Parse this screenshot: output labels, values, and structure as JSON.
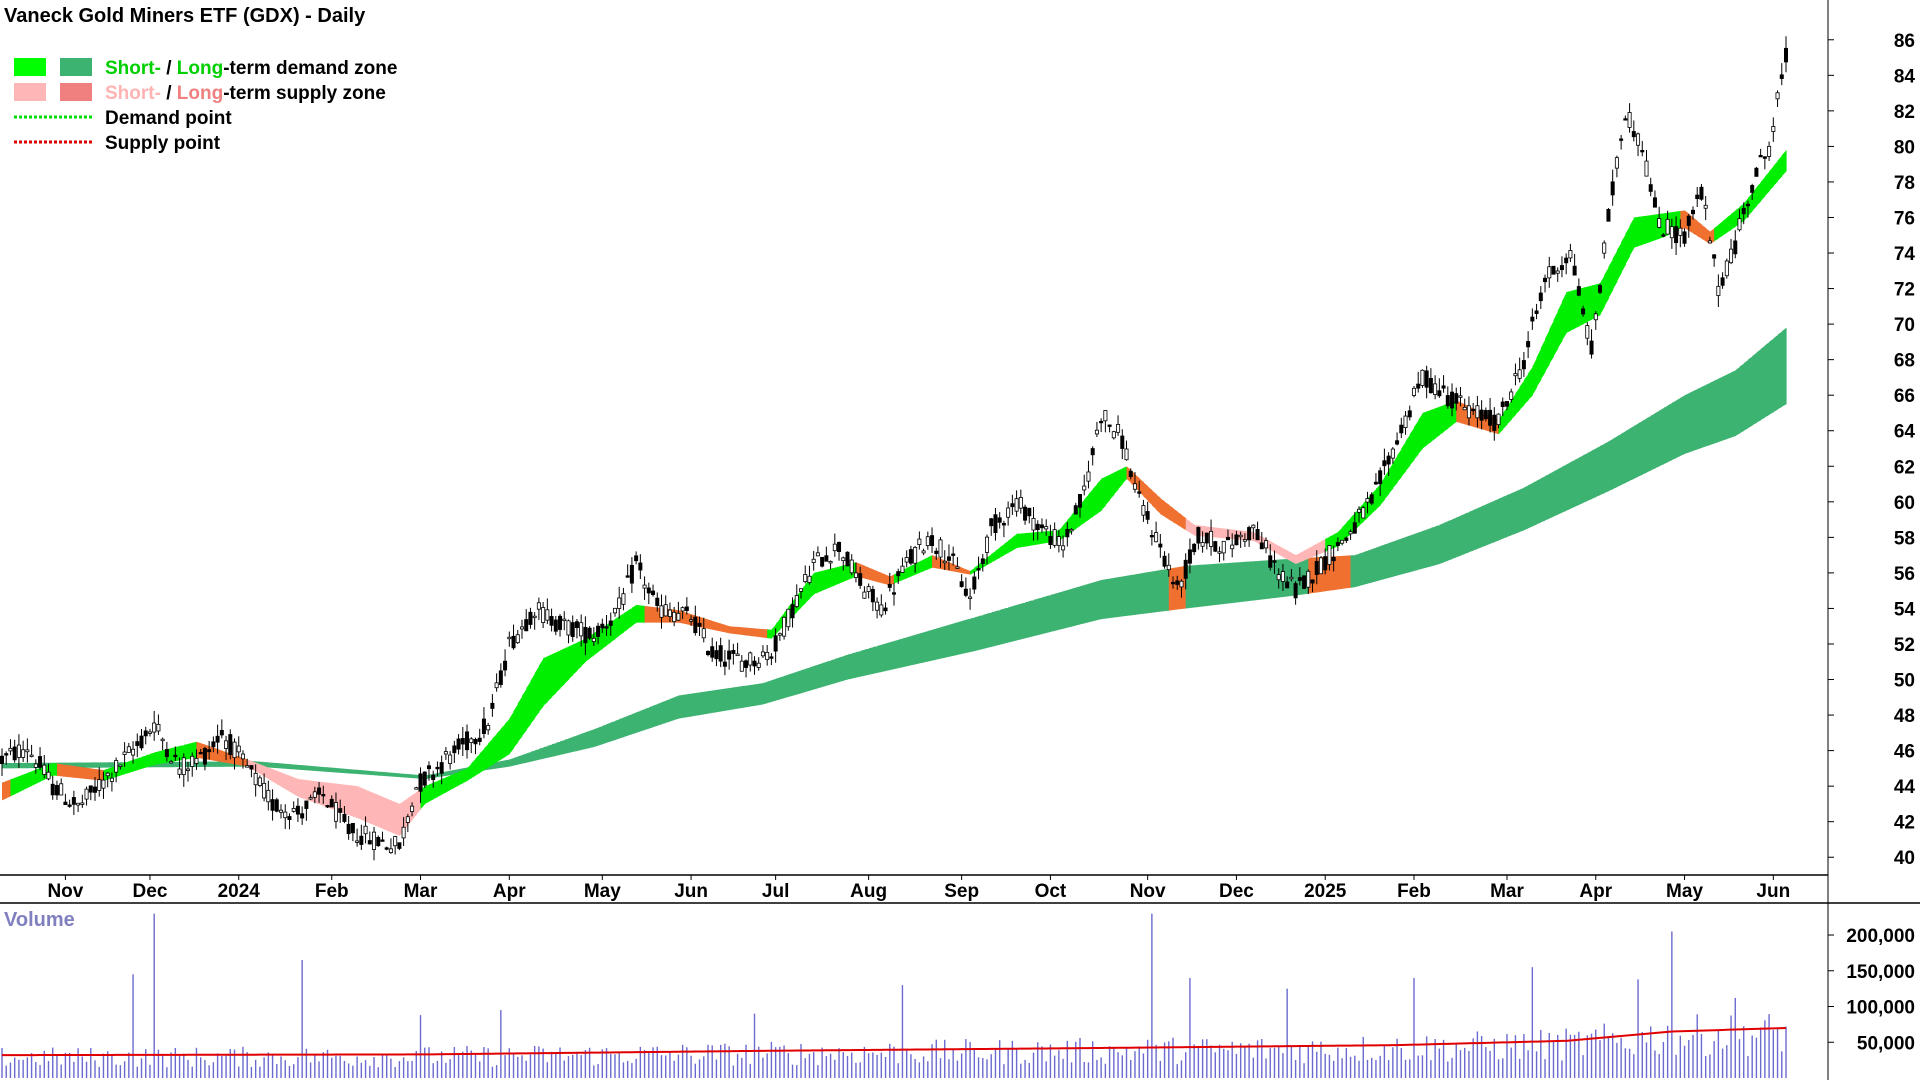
{
  "chart_data": [
    {
      "type": "candlestick",
      "title": "Vaneck Gold Miners ETF (GDX) - Daily",
      "legend": {
        "placement": "top-left",
        "entries": [
          {
            "parts": [
              {
                "text": "Short-",
                "color": "#00d000"
              },
              {
                "text": " / ",
                "color": "#000000"
              },
              {
                "text": "Long",
                "color": "#00d000"
              },
              {
                "text": "-term demand zone",
                "color": "#000000"
              }
            ],
            "swatches": [
              "#00ff00",
              "#3cb371"
            ],
            "style": "box"
          },
          {
            "parts": [
              {
                "text": "Short-",
                "color": "#ffb3b3"
              },
              {
                "text": " / ",
                "color": "#000000"
              },
              {
                "text": "Long",
                "color": "#f08080"
              },
              {
                "text": "-term supply zone",
                "color": "#000000"
              }
            ],
            "swatches": [
              "#ffb6b6",
              "#f08080"
            ],
            "style": "box"
          },
          {
            "parts": [
              {
                "text": "Demand point",
                "color": "#000000"
              }
            ],
            "swatches": [
              "#00dd00"
            ],
            "style": "dots"
          },
          {
            "parts": [
              {
                "text": "Supply point",
                "color": "#000000"
              }
            ],
            "swatches": [
              "#dd0000"
            ],
            "style": "dots"
          }
        ]
      },
      "y_axis": {
        "side": "right",
        "ylim": [
          39,
          87
        ],
        "ticks": [
          40,
          42,
          44,
          46,
          48,
          50,
          52,
          54,
          56,
          58,
          60,
          62,
          64,
          66,
          68,
          70,
          72,
          74,
          76,
          78,
          80,
          82,
          84,
          86
        ]
      },
      "x_axis": {
        "tick_labels": [
          "Nov",
          "Dec",
          "2024",
          "Feb",
          "Mar",
          "Apr",
          "May",
          "Jun",
          "Jul",
          "Aug",
          "Sep",
          "Oct",
          "Nov",
          "Dec",
          "2025",
          "Feb",
          "Mar",
          "Apr",
          "May",
          "Jun"
        ],
        "tick_index": [
          15,
          35,
          56,
          78,
          99,
          120,
          142,
          163,
          183,
          205,
          227,
          248,
          271,
          292,
          313,
          334,
          356,
          377,
          398,
          419
        ],
        "total_bars": 423
      },
      "price_keypoints": [
        {
          "i": 0,
          "v": 45.5
        },
        {
          "i": 6,
          "v": 46.2
        },
        {
          "i": 12,
          "v": 44.0
        },
        {
          "i": 18,
          "v": 42.8
        },
        {
          "i": 25,
          "v": 44.5
        },
        {
          "i": 32,
          "v": 46.3
        },
        {
          "i": 36,
          "v": 47.5
        },
        {
          "i": 42,
          "v": 45.0
        },
        {
          "i": 48,
          "v": 45.8
        },
        {
          "i": 52,
          "v": 47.0
        },
        {
          "i": 58,
          "v": 45.0
        },
        {
          "i": 64,
          "v": 43.0
        },
        {
          "i": 70,
          "v": 42.5
        },
        {
          "i": 76,
          "v": 43.5
        },
        {
          "i": 82,
          "v": 41.5
        },
        {
          "i": 88,
          "v": 41.0
        },
        {
          "i": 94,
          "v": 40.6
        },
        {
          "i": 98,
          "v": 44.0
        },
        {
          "i": 105,
          "v": 45.5
        },
        {
          "i": 110,
          "v": 46.5
        },
        {
          "i": 115,
          "v": 47.5
        },
        {
          "i": 120,
          "v": 52.0
        },
        {
          "i": 126,
          "v": 54.0
        },
        {
          "i": 133,
          "v": 53.0
        },
        {
          "i": 140,
          "v": 52.5
        },
        {
          "i": 146,
          "v": 54.0
        },
        {
          "i": 150,
          "v": 56.5
        },
        {
          "i": 155,
          "v": 54.0
        },
        {
          "i": 163,
          "v": 53.5
        },
        {
          "i": 168,
          "v": 51.5
        },
        {
          "i": 176,
          "v": 51.0
        },
        {
          "i": 182,
          "v": 51.5
        },
        {
          "i": 186,
          "v": 53.5
        },
        {
          "i": 192,
          "v": 56.5
        },
        {
          "i": 198,
          "v": 57.5
        },
        {
          "i": 204,
          "v": 55.0
        },
        {
          "i": 208,
          "v": 54.0
        },
        {
          "i": 214,
          "v": 56.5
        },
        {
          "i": 219,
          "v": 58.0
        },
        {
          "i": 224,
          "v": 57.0
        },
        {
          "i": 229,
          "v": 54.5
        },
        {
          "i": 234,
          "v": 58.5
        },
        {
          "i": 240,
          "v": 60.0
        },
        {
          "i": 246,
          "v": 58.5
        },
        {
          "i": 251,
          "v": 57.5
        },
        {
          "i": 256,
          "v": 60.5
        },
        {
          "i": 260,
          "v": 65.0
        },
        {
          "i": 265,
          "v": 63.5
        },
        {
          "i": 269,
          "v": 60.0
        },
        {
          "i": 274,
          "v": 57.5
        },
        {
          "i": 278,
          "v": 55.0
        },
        {
          "i": 283,
          "v": 58.0
        },
        {
          "i": 290,
          "v": 57.5
        },
        {
          "i": 296,
          "v": 58.5
        },
        {
          "i": 302,
          "v": 56.0
        },
        {
          "i": 306,
          "v": 55.0
        },
        {
          "i": 312,
          "v": 56.5
        },
        {
          "i": 318,
          "v": 58.0
        },
        {
          "i": 324,
          "v": 60.0
        },
        {
          "i": 330,
          "v": 63.5
        },
        {
          "i": 336,
          "v": 67.0
        },
        {
          "i": 342,
          "v": 66.0
        },
        {
          "i": 348,
          "v": 65.0
        },
        {
          "i": 354,
          "v": 64.5
        },
        {
          "i": 360,
          "v": 68.0
        },
        {
          "i": 365,
          "v": 72.5
        },
        {
          "i": 371,
          "v": 74.0
        },
        {
          "i": 376,
          "v": 68.5
        },
        {
          "i": 380,
          "v": 76.0
        },
        {
          "i": 384,
          "v": 82.0
        },
        {
          "i": 388,
          "v": 80.0
        },
        {
          "i": 392,
          "v": 75.5
        },
        {
          "i": 398,
          "v": 75.0
        },
        {
          "i": 402,
          "v": 77.5
        },
        {
          "i": 406,
          "v": 72.0
        },
        {
          "i": 410,
          "v": 74.5
        },
        {
          "i": 414,
          "v": 78.0
        },
        {
          "i": 418,
          "v": 80.0
        },
        {
          "i": 422,
          "v": 85.0
        }
      ],
      "short_term_zone": [
        {
          "i": 0,
          "lo": 43.2,
          "hi": 44.2
        },
        {
          "i": 12,
          "lo": 44.6,
          "hi": 45.3
        },
        {
          "i": 24,
          "lo": 44.3,
          "hi": 44.9
        },
        {
          "i": 36,
          "lo": 45.2,
          "hi": 45.9
        },
        {
          "i": 46,
          "lo": 45.6,
          "hi": 46.5
        },
        {
          "i": 58,
          "lo": 45.1,
          "hi": 45.5
        },
        {
          "i": 70,
          "lo": 43.4,
          "hi": 44.4
        },
        {
          "i": 84,
          "lo": 42.2,
          "hi": 44.0
        },
        {
          "i": 94,
          "lo": 41.2,
          "hi": 43.0
        },
        {
          "i": 100,
          "lo": 43.0,
          "hi": 44.0
        },
        {
          "i": 110,
          "lo": 44.3,
          "hi": 45.0
        },
        {
          "i": 120,
          "lo": 45.8,
          "hi": 47.8
        },
        {
          "i": 128,
          "lo": 48.5,
          "hi": 51.2
        },
        {
          "i": 138,
          "lo": 51.0,
          "hi": 52.3
        },
        {
          "i": 150,
          "lo": 53.2,
          "hi": 54.2
        },
        {
          "i": 160,
          "lo": 53.2,
          "hi": 53.9
        },
        {
          "i": 172,
          "lo": 52.6,
          "hi": 53.0
        },
        {
          "i": 182,
          "lo": 52.3,
          "hi": 52.8
        },
        {
          "i": 192,
          "lo": 54.8,
          "hi": 56.0
        },
        {
          "i": 202,
          "lo": 55.8,
          "hi": 56.6
        },
        {
          "i": 210,
          "lo": 55.3,
          "hi": 55.8
        },
        {
          "i": 220,
          "lo": 56.3,
          "hi": 57.0
        },
        {
          "i": 229,
          "lo": 55.9,
          "hi": 56.1
        },
        {
          "i": 240,
          "lo": 57.4,
          "hi": 58.2
        },
        {
          "i": 250,
          "lo": 57.8,
          "hi": 58.4
        },
        {
          "i": 260,
          "lo": 59.5,
          "hi": 61.3
        },
        {
          "i": 266,
          "lo": 61.3,
          "hi": 62.0
        },
        {
          "i": 274,
          "lo": 59.3,
          "hi": 60.2
        },
        {
          "i": 282,
          "lo": 58.1,
          "hi": 58.7
        },
        {
          "i": 296,
          "lo": 57.8,
          "hi": 58.3
        },
        {
          "i": 306,
          "lo": 56.5,
          "hi": 57.0
        },
        {
          "i": 316,
          "lo": 57.5,
          "hi": 58.3
        },
        {
          "i": 326,
          "lo": 59.8,
          "hi": 61.0
        },
        {
          "i": 336,
          "lo": 63.0,
          "hi": 65.0
        },
        {
          "i": 344,
          "lo": 64.5,
          "hi": 65.7
        },
        {
          "i": 354,
          "lo": 63.8,
          "hi": 64.6
        },
        {
          "i": 362,
          "lo": 66.0,
          "hi": 67.6
        },
        {
          "i": 370,
          "lo": 69.5,
          "hi": 71.8
        },
        {
          "i": 378,
          "lo": 70.5,
          "hi": 72.3
        },
        {
          "i": 386,
          "lo": 74.3,
          "hi": 76.0
        },
        {
          "i": 392,
          "lo": 74.8,
          "hi": 76.2
        },
        {
          "i": 398,
          "lo": 75.4,
          "hi": 76.4
        },
        {
          "i": 404,
          "lo": 74.5,
          "hi": 75.2
        },
        {
          "i": 412,
          "lo": 75.8,
          "hi": 76.8
        },
        {
          "i": 422,
          "lo": 78.6,
          "hi": 79.8
        }
      ],
      "long_term_zone": [
        {
          "i": 0,
          "lo": 45.0,
          "hi": 45.3
        },
        {
          "i": 60,
          "lo": 45.1,
          "hi": 45.4
        },
        {
          "i": 100,
          "lo": 44.4,
          "hi": 44.6
        },
        {
          "i": 120,
          "lo": 45.1,
          "hi": 45.5
        },
        {
          "i": 140,
          "lo": 46.2,
          "hi": 47.2
        },
        {
          "i": 160,
          "lo": 47.8,
          "hi": 49.1
        },
        {
          "i": 180,
          "lo": 48.6,
          "hi": 49.8
        },
        {
          "i": 200,
          "lo": 50.0,
          "hi": 51.4
        },
        {
          "i": 230,
          "lo": 51.6,
          "hi": 53.5
        },
        {
          "i": 260,
          "lo": 53.4,
          "hi": 55.6
        },
        {
          "i": 280,
          "lo": 54.0,
          "hi": 56.4
        },
        {
          "i": 305,
          "lo": 54.7,
          "hi": 56.8
        },
        {
          "i": 320,
          "lo": 55.2,
          "hi": 57.0
        },
        {
          "i": 340,
          "lo": 56.5,
          "hi": 58.7
        },
        {
          "i": 360,
          "lo": 58.4,
          "hi": 60.8
        },
        {
          "i": 380,
          "lo": 60.6,
          "hi": 63.4
        },
        {
          "i": 398,
          "lo": 62.7,
          "hi": 66.0
        },
        {
          "i": 410,
          "lo": 63.7,
          "hi": 67.4
        },
        {
          "i": 422,
          "lo": 65.5,
          "hi": 69.8
        }
      ],
      "volume": {
        "label": "Volume",
        "ylim": [
          0,
          235000
        ],
        "ticks": [
          50000,
          100000,
          150000,
          200000
        ],
        "tick_labels": [
          "50,000",
          "100,000",
          "150,000",
          "200,000"
        ],
        "ma_keypoints": [
          {
            "i": 0,
            "v": 32000
          },
          {
            "i": 100,
            "v": 33000
          },
          {
            "i": 180,
            "v": 38000
          },
          {
            "i": 260,
            "v": 42000
          },
          {
            "i": 330,
            "v": 46000
          },
          {
            "i": 370,
            "v": 52000
          },
          {
            "i": 395,
            "v": 65000
          },
          {
            "i": 422,
            "v": 70000
          }
        ],
        "spikes": [
          {
            "i": 31,
            "v": 145000
          },
          {
            "i": 36,
            "v": 230000
          },
          {
            "i": 71,
            "v": 165000
          },
          {
            "i": 99,
            "v": 88000
          },
          {
            "i": 118,
            "v": 95000
          },
          {
            "i": 178,
            "v": 90000
          },
          {
            "i": 213,
            "v": 130000
          },
          {
            "i": 272,
            "v": 230000
          },
          {
            "i": 281,
            "v": 140000
          },
          {
            "i": 304,
            "v": 125000
          },
          {
            "i": 334,
            "v": 140000
          },
          {
            "i": 362,
            "v": 155000
          },
          {
            "i": 387,
            "v": 138000
          },
          {
            "i": 395,
            "v": 205000
          },
          {
            "i": 410,
            "v": 112000
          }
        ]
      }
    }
  ]
}
